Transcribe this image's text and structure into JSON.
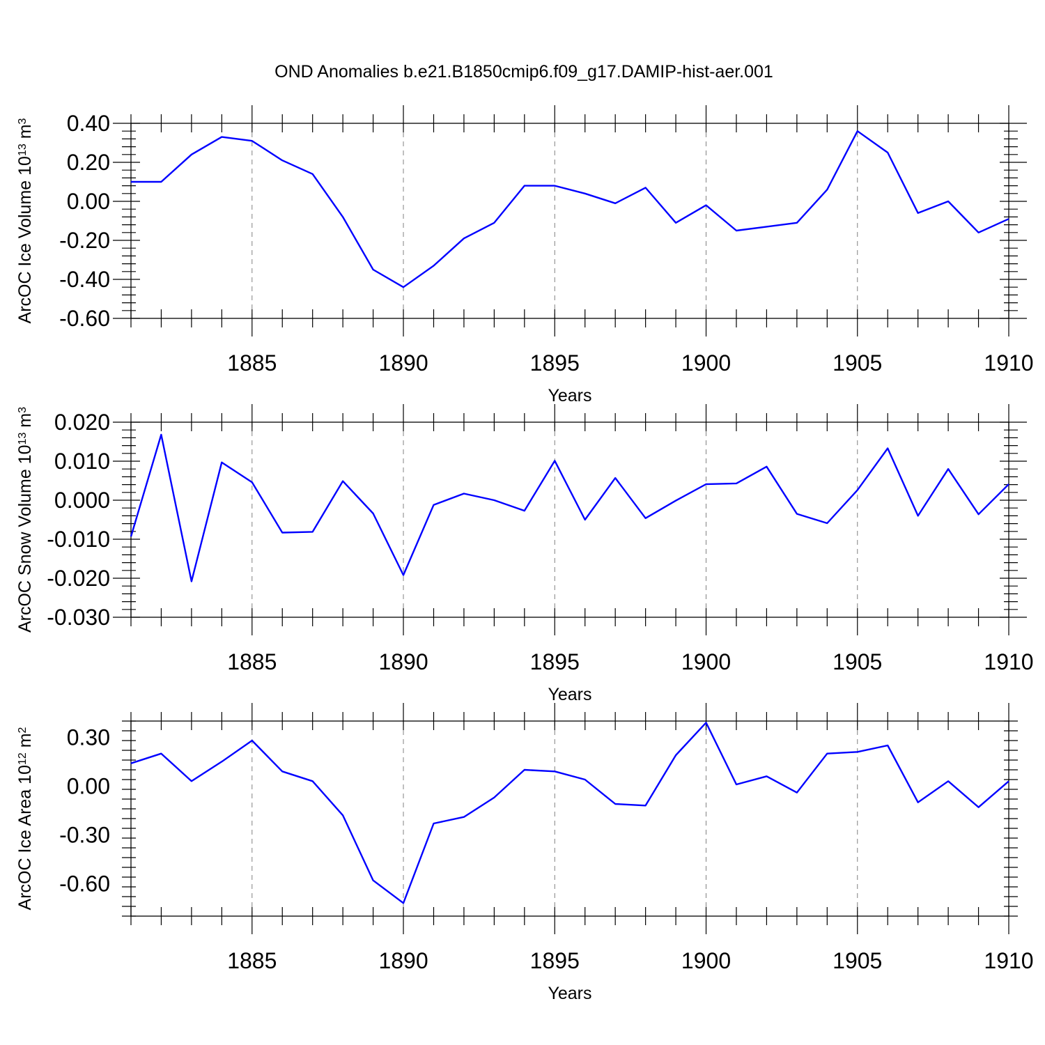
{
  "figure_title": "OND Anomalies b.e21.B1850cmip6.f09_g17.DAMIP-hist-aer.001",
  "line_color": "#0000ff",
  "chart_data": [
    {
      "type": "line",
      "title": "",
      "xlabel": "Years",
      "ylabel": "ArcOC Ice Volume 10",
      "ylabel_exponent": "13",
      "ylabel_unit": "m",
      "ylabel_unit_exponent": "3",
      "xlim": [
        1881,
        1910
      ],
      "ylim": [
        -0.6,
        0.4
      ],
      "x_ticks": [
        1885,
        1890,
        1895,
        1900,
        1905,
        1910
      ],
      "x_tick_labels": [
        "1885",
        "1890",
        "1895",
        "1900",
        "1905",
        "1910"
      ],
      "y_ticks": [
        -0.6,
        -0.4,
        -0.2,
        0.0,
        0.2,
        0.4
      ],
      "y_tick_labels": [
        "-0.60",
        "-0.40",
        "-0.20",
        "0.00",
        "0.20",
        "0.40"
      ],
      "grid": "vertical dashed at labeled years",
      "series": [
        {
          "x": [
            1881,
            1882,
            1883,
            1884,
            1885,
            1886,
            1887,
            1888,
            1889,
            1890,
            1891,
            1892,
            1893,
            1894,
            1895,
            1896,
            1897,
            1898,
            1899,
            1900,
            1901,
            1902,
            1903,
            1904,
            1905,
            1906,
            1907,
            1908,
            1909,
            1910
          ],
          "values": [
            0.1,
            0.1,
            0.24,
            0.33,
            0.31,
            0.21,
            0.14,
            -0.08,
            -0.35,
            -0.44,
            -0.33,
            -0.19,
            -0.11,
            0.08,
            0.08,
            0.04,
            -0.01,
            0.07,
            -0.11,
            -0.02,
            -0.15,
            -0.13,
            -0.11,
            0.06,
            0.36,
            0.25,
            -0.06,
            0.0,
            -0.16,
            -0.09
          ]
        }
      ]
    },
    {
      "type": "line",
      "title": "",
      "xlabel": "Years",
      "ylabel": "ArcOC Snow Volume 10",
      "ylabel_exponent": "13",
      "ylabel_unit": "m",
      "ylabel_unit_exponent": "3",
      "xlim": [
        1881,
        1910
      ],
      "ylim": [
        -0.03,
        0.02
      ],
      "x_ticks": [
        1885,
        1890,
        1895,
        1900,
        1905,
        1910
      ],
      "x_tick_labels": [
        "1885",
        "1890",
        "1895",
        "1900",
        "1905",
        "1910"
      ],
      "y_ticks": [
        -0.03,
        -0.02,
        -0.01,
        0.0,
        0.01,
        0.02
      ],
      "y_tick_labels": [
        "-0.030",
        "-0.020",
        "-0.010",
        "0.000",
        "0.010",
        "0.020"
      ],
      "grid": "vertical dashed at labeled years",
      "series": [
        {
          "x": [
            1881,
            1882,
            1883,
            1884,
            1885,
            1886,
            1887,
            1888,
            1889,
            1890,
            1891,
            1892,
            1893,
            1894,
            1895,
            1896,
            1897,
            1898,
            1899,
            1900,
            1901,
            1902,
            1903,
            1904,
            1905,
            1906,
            1907,
            1908,
            1909,
            1910
          ],
          "values": [
            -0.0093,
            0.0168,
            -0.0208,
            0.0097,
            0.0046,
            -0.0083,
            -0.0081,
            0.0049,
            -0.0034,
            -0.0192,
            -0.0012,
            0.0017,
            0.0,
            -0.0027,
            0.0101,
            -0.005,
            0.0057,
            -0.0046,
            -0.0001,
            0.0041,
            0.0043,
            0.0086,
            -0.0035,
            -0.0059,
            0.0026,
            0.0133,
            -0.004,
            0.008,
            -0.0036,
            0.0041
          ]
        }
      ]
    },
    {
      "type": "line",
      "title": "",
      "xlabel": "Years",
      "ylabel": "ArcOC Ice Area 10",
      "ylabel_exponent": "12",
      "ylabel_unit": "m",
      "ylabel_unit_exponent": "2",
      "xlim": [
        1881,
        1910
      ],
      "ylim": [
        -0.8,
        0.4
      ],
      "x_ticks": [
        1885,
        1890,
        1895,
        1900,
        1905,
        1910
      ],
      "x_tick_labels": [
        "1885",
        "1890",
        "1895",
        "1900",
        "1905",
        "1910"
      ],
      "y_ticks": [
        -0.6,
        -0.3,
        0.0,
        0.3
      ],
      "y_tick_labels": [
        "-0.60",
        "-0.30",
        "0.00",
        "0.30"
      ],
      "grid": "vertical dashed at labeled years",
      "series": [
        {
          "x": [
            1881,
            1882,
            1883,
            1884,
            1885,
            1886,
            1887,
            1888,
            1889,
            1890,
            1891,
            1892,
            1893,
            1894,
            1895,
            1896,
            1897,
            1898,
            1899,
            1900,
            1901,
            1902,
            1903,
            1904,
            1905,
            1906,
            1907,
            1908,
            1909,
            1910
          ],
          "values": [
            0.14,
            0.2,
            0.03,
            0.15,
            0.28,
            0.09,
            0.03,
            -0.18,
            -0.58,
            -0.72,
            -0.23,
            -0.19,
            -0.07,
            0.1,
            0.09,
            0.04,
            -0.11,
            -0.12,
            0.19,
            0.39,
            0.01,
            0.06,
            -0.04,
            0.2,
            0.21,
            0.25,
            -0.1,
            0.03,
            -0.13,
            0.03
          ]
        }
      ]
    }
  ]
}
